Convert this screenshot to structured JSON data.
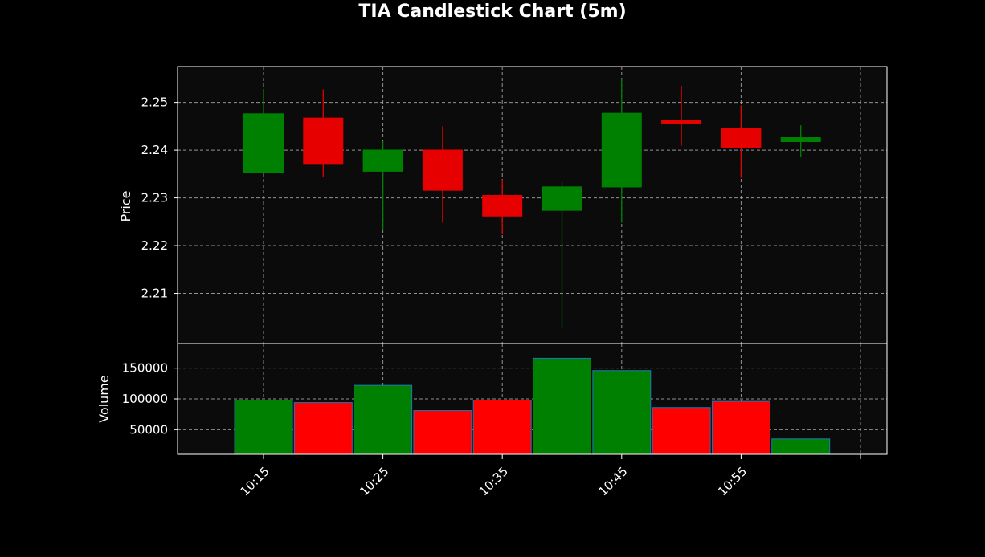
{
  "chart_data": {
    "type": "candlestick",
    "title": "TIA Candlestick Chart (5m)",
    "price_ylabel": "Price",
    "volume_ylabel": "Volume",
    "x_tick_labels": [
      "10:15",
      "10:25",
      "10:35",
      "10:45",
      "10:55"
    ],
    "price_ticks": [
      "2.21",
      "2.22",
      "2.23",
      "2.24",
      "2.25"
    ],
    "volume_ticks": [
      "50000",
      "100000",
      "150000"
    ],
    "price_ylim": [
      2.1995,
      2.2575
    ],
    "volume_ylim": [
      10000,
      190000
    ],
    "grid": true,
    "colors": {
      "background": "#000000",
      "panel": "#0b0b0b",
      "up": "#008000",
      "down": "#ff0000",
      "candle_down": "#e60000",
      "volume_edge": "#1f77b4",
      "grid": "#aaaaaa",
      "text": "#ffffff"
    },
    "candles": [
      {
        "time": "10:15",
        "open": 2.2353,
        "high": 2.2528,
        "low": 2.2353,
        "close": 2.2477
      },
      {
        "time": "10:20",
        "open": 2.2468,
        "high": 2.2527,
        "low": 2.2343,
        "close": 2.2371
      },
      {
        "time": "10:25",
        "open": 2.2355,
        "high": 2.2418,
        "low": 2.2232,
        "close": 2.2401
      },
      {
        "time": "10:30",
        "open": 2.2401,
        "high": 2.245,
        "low": 2.2248,
        "close": 2.2315
      },
      {
        "time": "10:35",
        "open": 2.2306,
        "high": 2.2338,
        "low": 2.2225,
        "close": 2.2261
      },
      {
        "time": "10:40",
        "open": 2.2273,
        "high": 2.2333,
        "low": 2.2027,
        "close": 2.2324
      },
      {
        "time": "10:45",
        "open": 2.2322,
        "high": 2.255,
        "low": 2.2248,
        "close": 2.2478
      },
      {
        "time": "10:50",
        "open": 2.2464,
        "high": 2.2535,
        "low": 2.2409,
        "close": 2.2455
      },
      {
        "time": "10:55",
        "open": 2.2446,
        "high": 2.2494,
        "low": 2.2342,
        "close": 2.2405
      },
      {
        "time": "11:00",
        "open": 2.2417,
        "high": 2.2452,
        "low": 2.2385,
        "close": 2.2427
      }
    ],
    "volumes": [
      {
        "time": "10:15",
        "value": 98000,
        "direction": "up"
      },
      {
        "time": "10:20",
        "value": 94000,
        "direction": "down"
      },
      {
        "time": "10:25",
        "value": 122000,
        "direction": "up"
      },
      {
        "time": "10:30",
        "value": 81000,
        "direction": "down"
      },
      {
        "time": "10:35",
        "value": 98000,
        "direction": "down"
      },
      {
        "time": "10:40",
        "value": 166000,
        "direction": "up"
      },
      {
        "time": "10:45",
        "value": 146000,
        "direction": "up"
      },
      {
        "time": "10:50",
        "value": 86000,
        "direction": "down"
      },
      {
        "time": "10:55",
        "value": 96000,
        "direction": "down"
      },
      {
        "time": "11:00",
        "value": 35000,
        "direction": "up"
      }
    ]
  }
}
